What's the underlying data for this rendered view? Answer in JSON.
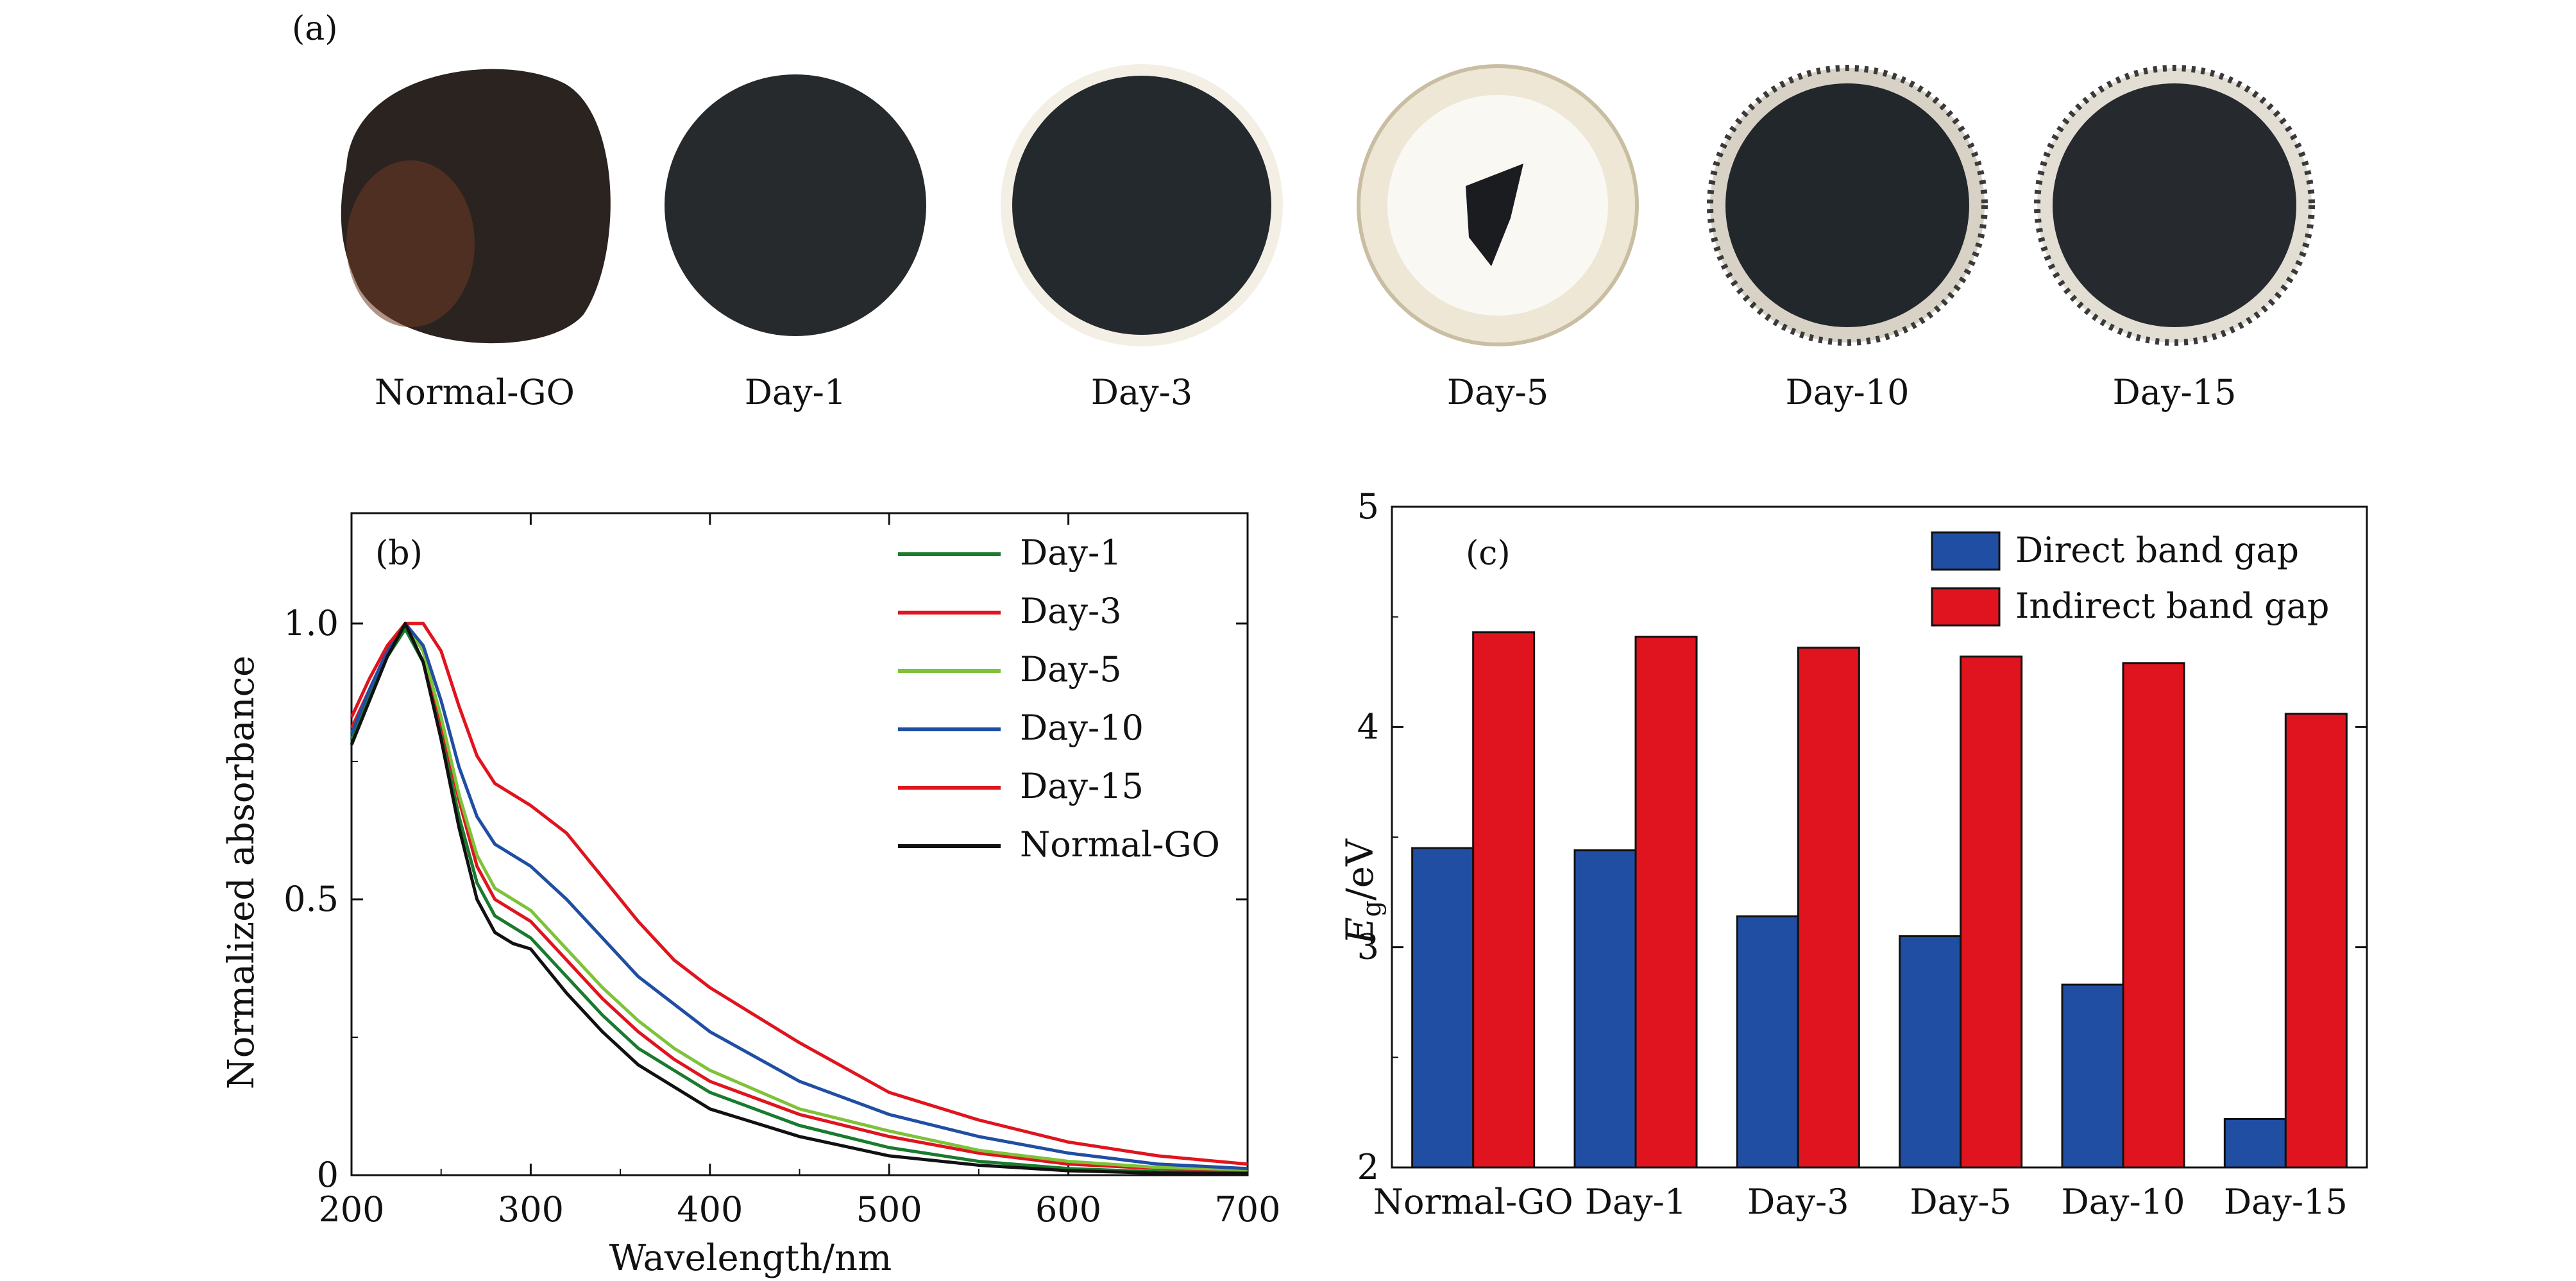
{
  "panel_a": {
    "label": "(a)",
    "samples": [
      {
        "label": "Normal-GO",
        "kind": "disc-irregular",
        "fill": "#2a2320",
        "tint": "#6e3a24"
      },
      {
        "label": "Day-1",
        "kind": "disc",
        "fill": "#262a2c"
      },
      {
        "label": "Day-3",
        "kind": "disc-halo",
        "fill": "#24292d",
        "halo": "#f3efe4"
      },
      {
        "label": "Day-5",
        "kind": "fragment",
        "fill": "#1b1c20",
        "halo": "#eee7d6"
      },
      {
        "label": "Day-10",
        "kind": "disc-speckled",
        "fill": "#22272c",
        "halo": "#d8d2c6"
      },
      {
        "label": "Day-15",
        "kind": "disc-speckled",
        "fill": "#262a2e",
        "halo": "#e3ded4"
      }
    ]
  },
  "chart_data": [
    {
      "panel": "(b)",
      "type": "line",
      "xlabel": "Wavelength/nm",
      "ylabel": "Normalized absorbance",
      "xlim": [
        200,
        700
      ],
      "ylim": [
        0,
        1.2
      ],
      "xticks": [
        200,
        300,
        400,
        500,
        600,
        700
      ],
      "yticks": [
        0,
        0.5,
        1.0
      ],
      "ytick_labels": [
        "0",
        "0.5",
        "1.0"
      ],
      "legend_position": "top-right",
      "series": [
        {
          "name": "Day-1",
          "color": "#1a7a2e",
          "x": [
            200,
            210,
            220,
            230,
            240,
            250,
            260,
            270,
            280,
            290,
            300,
            320,
            340,
            360,
            380,
            400,
            450,
            500,
            550,
            600,
            650,
            700
          ],
          "y": [
            0.79,
            0.87,
            0.94,
            0.99,
            0.93,
            0.8,
            0.65,
            0.53,
            0.47,
            0.45,
            0.43,
            0.36,
            0.29,
            0.23,
            0.19,
            0.15,
            0.09,
            0.05,
            0.025,
            0.012,
            0.006,
            0.005
          ]
        },
        {
          "name": "Day-3",
          "color": "#e0141e",
          "x": [
            200,
            210,
            220,
            230,
            240,
            250,
            260,
            270,
            280,
            290,
            300,
            320,
            340,
            360,
            380,
            400,
            450,
            500,
            550,
            600,
            650,
            700
          ],
          "y": [
            0.81,
            0.88,
            0.95,
            1.0,
            0.95,
            0.82,
            0.68,
            0.56,
            0.5,
            0.48,
            0.46,
            0.39,
            0.32,
            0.26,
            0.21,
            0.17,
            0.11,
            0.07,
            0.04,
            0.02,
            0.012,
            0.01
          ]
        },
        {
          "name": "Day-5",
          "color": "#7ec23a",
          "x": [
            200,
            210,
            220,
            230,
            240,
            250,
            260,
            270,
            280,
            290,
            300,
            320,
            340,
            360,
            380,
            400,
            450,
            500,
            550,
            600,
            650,
            700
          ],
          "y": [
            0.8,
            0.88,
            0.95,
            1.0,
            0.95,
            0.83,
            0.69,
            0.58,
            0.52,
            0.5,
            0.48,
            0.41,
            0.34,
            0.28,
            0.23,
            0.19,
            0.12,
            0.08,
            0.045,
            0.025,
            0.014,
            0.01
          ]
        },
        {
          "name": "Day-10",
          "color": "#1f4ea3",
          "x": [
            200,
            210,
            220,
            230,
            240,
            250,
            260,
            270,
            280,
            290,
            300,
            320,
            340,
            360,
            380,
            400,
            450,
            500,
            550,
            600,
            650,
            700
          ],
          "y": [
            0.8,
            0.88,
            0.95,
            1.0,
            0.96,
            0.86,
            0.74,
            0.65,
            0.6,
            0.58,
            0.56,
            0.5,
            0.43,
            0.36,
            0.31,
            0.26,
            0.17,
            0.11,
            0.07,
            0.04,
            0.02,
            0.012
          ]
        },
        {
          "name": "Day-15",
          "color": "#e0141e",
          "x": [
            200,
            210,
            220,
            230,
            240,
            250,
            260,
            270,
            280,
            290,
            300,
            320,
            340,
            360,
            380,
            400,
            450,
            500,
            550,
            600,
            650,
            700
          ],
          "y": [
            0.83,
            0.9,
            0.96,
            1.0,
            1.0,
            0.95,
            0.85,
            0.76,
            0.71,
            0.69,
            0.67,
            0.62,
            0.54,
            0.46,
            0.39,
            0.34,
            0.24,
            0.15,
            0.1,
            0.06,
            0.035,
            0.02
          ]
        },
        {
          "name": "Normal-GO",
          "color": "#111111",
          "x": [
            200,
            210,
            220,
            230,
            240,
            250,
            260,
            270,
            280,
            290,
            300,
            320,
            340,
            360,
            380,
            400,
            450,
            500,
            550,
            600,
            650,
            700
          ],
          "y": [
            0.78,
            0.86,
            0.94,
            1.0,
            0.93,
            0.79,
            0.63,
            0.5,
            0.44,
            0.42,
            0.41,
            0.33,
            0.26,
            0.2,
            0.16,
            0.12,
            0.07,
            0.035,
            0.018,
            0.008,
            0.004,
            0.003
          ]
        }
      ]
    },
    {
      "panel": "(c)",
      "type": "bar",
      "ylabel_main": "E",
      "ylabel_sub": "g",
      "ylabel_unit": "/eV",
      "categories": [
        "Normal-GO",
        "Day-1",
        "Day-3",
        "Day-5",
        "Day-10",
        "Day-15"
      ],
      "ylim": [
        2,
        5
      ],
      "yticks": [
        2,
        3,
        4,
        5
      ],
      "legend_position": "top-right",
      "series": [
        {
          "name": "Direct band gap",
          "color": "#1f4ea3",
          "values": [
            3.45,
            3.44,
            3.14,
            3.05,
            2.83,
            2.22
          ]
        },
        {
          "name": "Indirect band gap",
          "color": "#e0141e",
          "values": [
            4.43,
            4.41,
            4.36,
            4.32,
            4.29,
            4.06
          ]
        }
      ]
    }
  ]
}
